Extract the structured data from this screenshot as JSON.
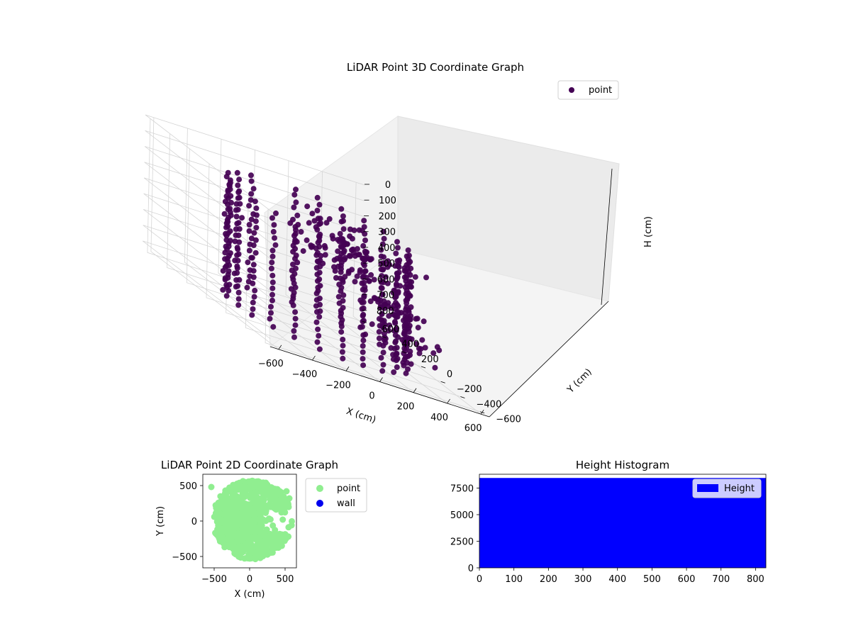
{
  "figure": {
    "background": "#ffffff"
  },
  "chart_data": [
    {
      "id": "scatter3d",
      "type": "scatter",
      "projection": "3d",
      "title": "LiDAR Point 3D Coordinate Graph",
      "xlabel": "X (cm)",
      "ylabel": "Y (cm)",
      "zlabel": "H (cm)",
      "xlim": [
        -650,
        650
      ],
      "ylim": [
        -650,
        650
      ],
      "zlim": [
        0,
        850
      ],
      "z_inverted": true,
      "xticks": [
        -600,
        -400,
        -200,
        0,
        200,
        400,
        600
      ],
      "yticks": [
        -600,
        -400,
        -200,
        0,
        200,
        400,
        600
      ],
      "zticks": [
        0,
        100,
        200,
        300,
        400,
        500,
        600,
        700,
        800
      ],
      "grid": true,
      "legend_position": "upper-right",
      "series": [
        {
          "name": "point",
          "color": "#440154"
        }
      ]
    },
    {
      "id": "scatter2d",
      "type": "scatter",
      "title": "LiDAR Point 2D Coordinate Graph",
      "xlabel": "X (cm)",
      "ylabel": "Y (cm)",
      "xlim": [
        -660,
        660
      ],
      "ylim": [
        -660,
        660
      ],
      "xticks": [
        -500,
        0,
        500
      ],
      "yticks": [
        -500,
        0,
        500
      ],
      "legend_position": "outside-right",
      "series": [
        {
          "name": "point",
          "color": "#90ee90"
        },
        {
          "name": "wall",
          "color": "#0000ee"
        }
      ]
    },
    {
      "id": "histogram",
      "type": "bar",
      "title": "Height Histogram",
      "xlim": [
        0,
        830
      ],
      "ylim": [
        0,
        8800
      ],
      "xticks": [
        0,
        100,
        200,
        300,
        400,
        500,
        600,
        700,
        800
      ],
      "yticks": [
        0,
        2500,
        5000,
        7500
      ],
      "legend_position": "upper-right",
      "series": [
        {
          "name": "Height",
          "color": "#0000ff",
          "bin_start": 0,
          "bin_end": 830,
          "value": 8450
        }
      ]
    }
  ]
}
